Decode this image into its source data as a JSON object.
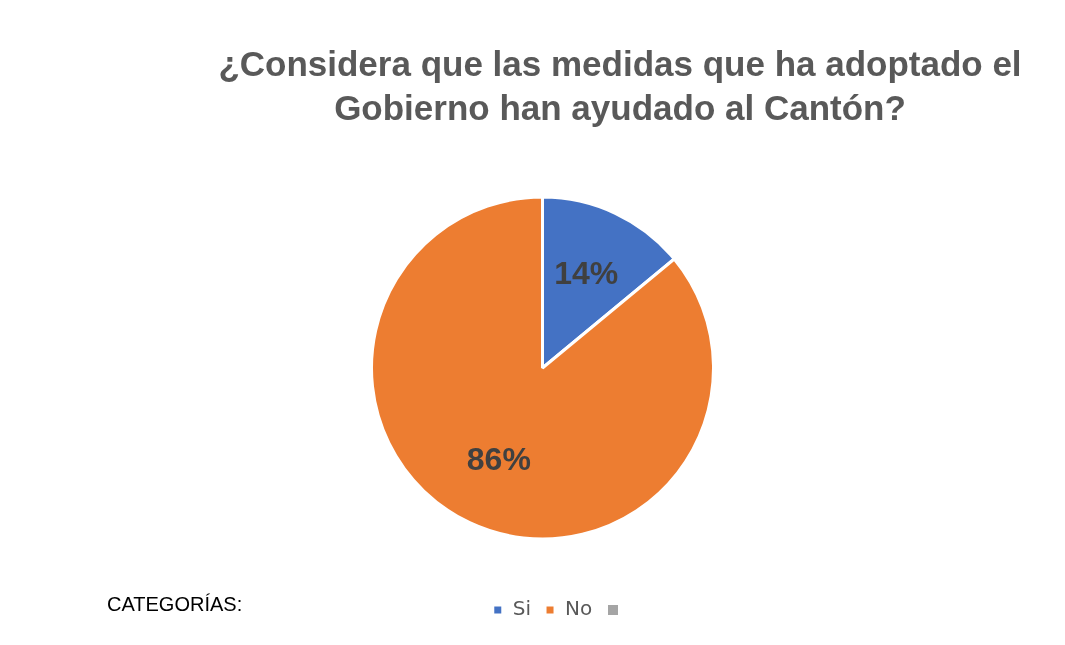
{
  "chart_data": {
    "type": "pie",
    "title": "¿Considera que las medidas que ha adoptado  el Gobierno han ayudado al Cantón?",
    "legend_title": "CATEGORÍAS:",
    "categories": [
      "Si",
      "No"
    ],
    "values": [
      14,
      86
    ],
    "colors": [
      "#4472c4",
      "#ed7d31"
    ],
    "value_labels": [
      "14%",
      "86%"
    ],
    "legend": "bottom"
  }
}
